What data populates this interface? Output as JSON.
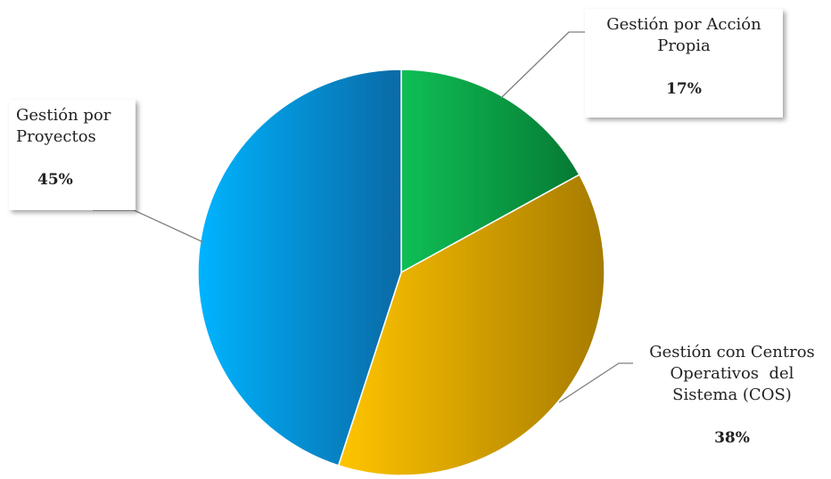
{
  "chart_data": {
    "type": "pie",
    "title": "",
    "slices": [
      {
        "label": "Gestión por Acción Propia",
        "label_lines": [
          "Gestión por Acción",
          "Propia"
        ],
        "value": 17,
        "value_label": "17%",
        "color_light": "#0fbf55",
        "color_dark": "#067a34"
      },
      {
        "label": "Gestión con Centros Operativos del Sistema (COS)",
        "label_lines": [
          "Gestión con Centros",
          "Operativos  del",
          "Sistema (COS)"
        ],
        "value": 38,
        "value_label": "38%",
        "color_light": "#ffc400",
        "color_dark": "#a67b00"
      },
      {
        "label": "Gestión por Proyectos",
        "label_lines": [
          "Gestión por",
          "Proyectos"
        ],
        "value": 45,
        "value_label": "45%",
        "color_light": "#00b4ff",
        "color_dark": "#0a6aa6"
      }
    ],
    "start_angle": "12 o'clock",
    "direction": "clockwise",
    "legend": "none"
  }
}
